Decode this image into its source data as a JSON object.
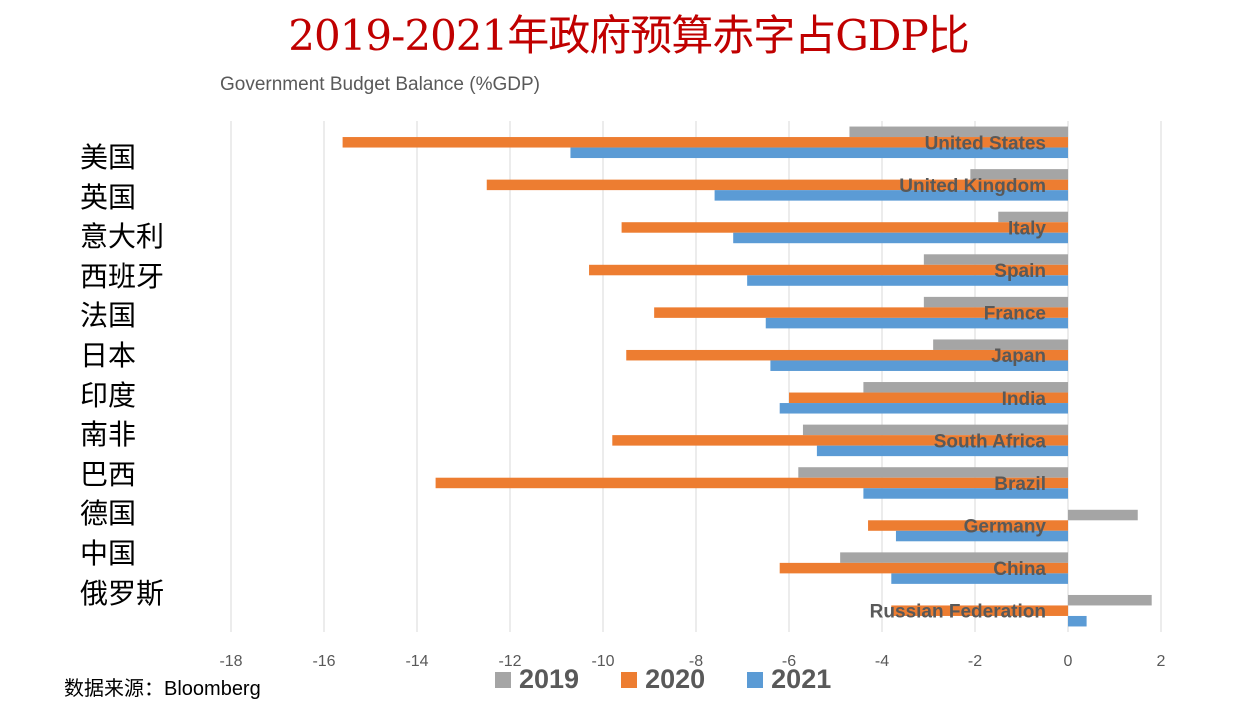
{
  "header": {
    "title": "2019-2021年政府预算赤字占GDP比",
    "subtitle": "Government Budget Balance (%GDP)"
  },
  "source": {
    "label": "数据来源：",
    "value": "Bloomberg"
  },
  "colors": {
    "2019": "#a5a5a5",
    "2020": "#ed7d31",
    "2021": "#5b9bd5",
    "grid": "#d9d9d9",
    "label_text": "#595959",
    "title": "#c00000"
  },
  "chart_data": {
    "type": "bar",
    "orientation": "horizontal",
    "title": "2019-2021年政府预算赤字占GDP比",
    "subtitle": "Government Budget Balance (%GDP)",
    "xlabel": "",
    "ylabel": "",
    "xlim": [
      -18,
      2
    ],
    "xticks": [
      -18,
      -16,
      -14,
      -12,
      -10,
      -8,
      -6,
      -4,
      -2,
      0,
      2
    ],
    "grid": true,
    "legend_position": "bottom",
    "categories": [
      "United States",
      "United Kingdom",
      "Italy",
      "Spain",
      "France",
      "Japan",
      "India",
      "South Africa",
      "Brazil",
      "Germany",
      "China",
      "Russian Federation"
    ],
    "categories_cn": [
      "美国",
      "英国",
      "意大利",
      "西班牙",
      "法国",
      "日本",
      "印度",
      "南非",
      "巴西",
      "德国",
      "中国",
      "俄罗斯"
    ],
    "series": [
      {
        "name": "2019",
        "values": [
          -4.7,
          -2.1,
          -1.5,
          -3.1,
          -3.1,
          -2.9,
          -4.4,
          -5.7,
          -5.8,
          1.5,
          -4.9,
          1.8
        ]
      },
      {
        "name": "2020",
        "values": [
          -15.6,
          -12.5,
          -9.6,
          -10.3,
          -8.9,
          -9.5,
          -6.0,
          -9.8,
          -13.6,
          -4.3,
          -6.2,
          -3.8
        ]
      },
      {
        "name": "2021",
        "values": [
          -10.7,
          -7.6,
          -7.2,
          -6.9,
          -6.5,
          -6.4,
          -6.2,
          -5.4,
          -4.4,
          -3.7,
          -3.8,
          0.4
        ]
      }
    ]
  }
}
